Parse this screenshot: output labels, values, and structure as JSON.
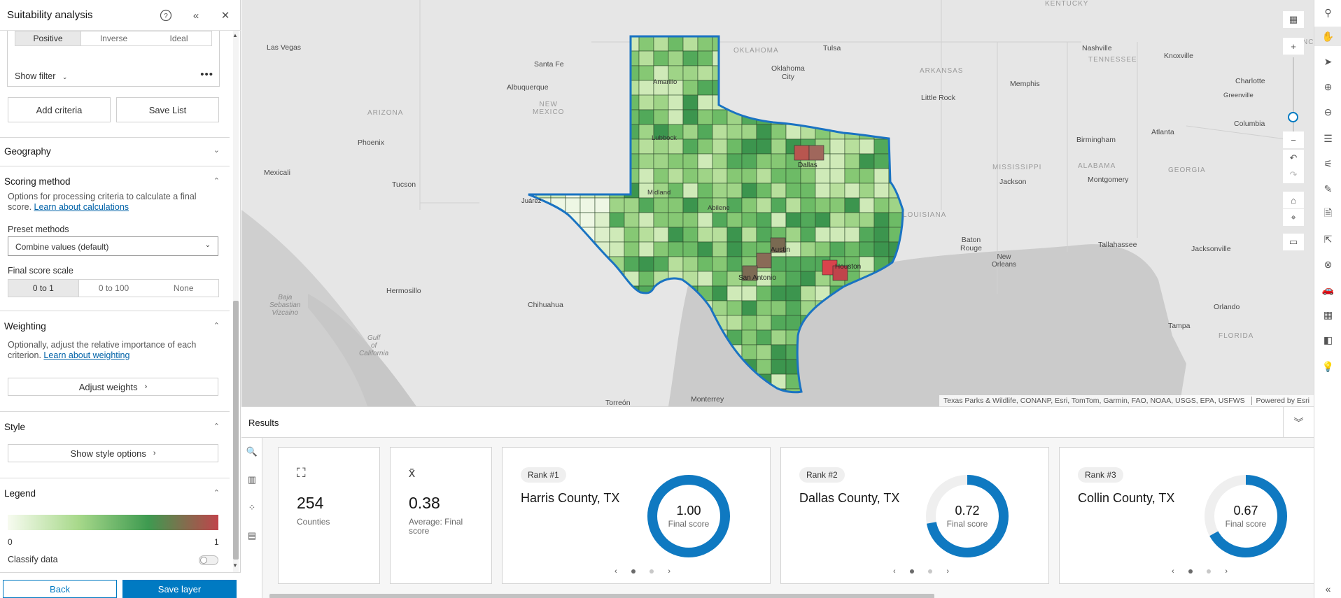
{
  "panel": {
    "title": "Suitability analysis",
    "help_icon": "help-icon",
    "collapse_icon": "double-chevron-left-icon",
    "close_icon": "close-icon",
    "transform_options": [
      "Positive",
      "Inverse",
      "Ideal"
    ],
    "transform_selected": "Positive",
    "show_filter": "Show filter",
    "add_criteria": "Add criteria",
    "save_list": "Save List",
    "geography": {
      "title": "Geography"
    },
    "scoring": {
      "title": "Scoring method",
      "description": "Options for processing criteria to calculate a final score.",
      "link": "Learn about calculations",
      "preset_label": "Preset methods",
      "preset_value": "Combine values (default)",
      "scale_label": "Final score scale",
      "scale_options": [
        "0 to 1",
        "0 to 100",
        "None"
      ],
      "scale_selected": "0 to 1"
    },
    "weighting": {
      "title": "Weighting",
      "description": "Optionally, adjust the relative importance of each criterion.",
      "link": "Learn about weighting",
      "button": "Adjust weights"
    },
    "style": {
      "title": "Style",
      "button": "Show style options"
    },
    "legend": {
      "title": "Legend",
      "min": "0",
      "max": "1",
      "classify": "Classify data",
      "classify_on": false,
      "ramp": [
        "#f7fbf0",
        "#a8d98b",
        "#3e9a50",
        "#c0444b"
      ]
    },
    "back": "Back",
    "save_layer": "Save layer"
  },
  "map": {
    "labels": {
      "las_vegas": "Las Vegas",
      "santa_fe": "Santa Fe",
      "albuquerque": "Albuquerque",
      "new_mexico": "NEW\nMEXICO",
      "arizona": "ARIZONA",
      "phoenix": "Phoenix",
      "tucson": "Tucson",
      "mexicali": "Mexicali",
      "hermosillo": "Hermosillo",
      "chihuahua": "Chihuahua",
      "baja": "Baja\nSebastian\nVizcaino",
      "gulf": "Gulf\nof\nCalifornia",
      "torreon": "Torreón",
      "monterrey": "Monterrey",
      "oklahoma": "OKLAHOMA",
      "tulsa": "Tulsa",
      "okc": "Oklahoma\nCity",
      "arkansas": "ARKANSAS",
      "little_rock": "Little Rock",
      "memphis": "Memphis",
      "nashville": "Nashville",
      "tennessee": "TENNESSEE",
      "knoxville": "Knoxville",
      "charlotte": "Charlotte",
      "greenville": "Greenville",
      "columbia": "Columbia",
      "birmingham": "Birmingham",
      "atlanta": "Atlanta",
      "mississippi": "MISSISSIPPI",
      "alabama": "ALABAMA",
      "georgia": "GEORGIA",
      "jackson": "Jackson",
      "montgomery": "Montgomery",
      "louisiana": "LOUISIANA",
      "baton_rouge": "Baton\nRouge",
      "new_orleans": "New\nOrleans",
      "tallahassee": "Tallahassee",
      "jacksonville": "Jacksonville",
      "orlando": "Orlando",
      "tampa": "Tampa",
      "florida": "FLORIDA",
      "kentucky": "KENTUCKY",
      "nc": "NC",
      "amarillo": "Amarillo",
      "lubbock": "Lubbock",
      "midland": "Midland",
      "juarez": "Juárez",
      "dallas": "Dallas",
      "austin": "Austin",
      "san_antonio": "San Antonio",
      "houston": "Houston",
      "abilene": "Abilene"
    },
    "attribution": "Texas Parks & Wildlife, CONANP, Esri, TomTom, Garmin, FAO, NOAA, USGS, EPA, USFWS",
    "powered_by": "Powered by Esri",
    "colors": {
      "ocean": "#c8c8c8",
      "land": "#e6e6e6",
      "outline": "#1a73c2"
    }
  },
  "results": {
    "title": "Results",
    "count": {
      "value": "254",
      "label": "Counties"
    },
    "average": {
      "value": "0.38",
      "label": "Average: Final score"
    },
    "ranks": [
      {
        "badge": "Rank #1",
        "name": "Harris County, TX",
        "score": "1.00",
        "score_label": "Final score",
        "fraction": 1.0
      },
      {
        "badge": "Rank #2",
        "name": "Dallas County, TX",
        "score": "0.72",
        "score_label": "Final score",
        "fraction": 0.72
      },
      {
        "badge": "Rank #3",
        "name": "Collin County, TX",
        "score": "0.67",
        "score_label": "Final score",
        "fraction": 0.67
      }
    ],
    "accent": "#0f79c1"
  }
}
